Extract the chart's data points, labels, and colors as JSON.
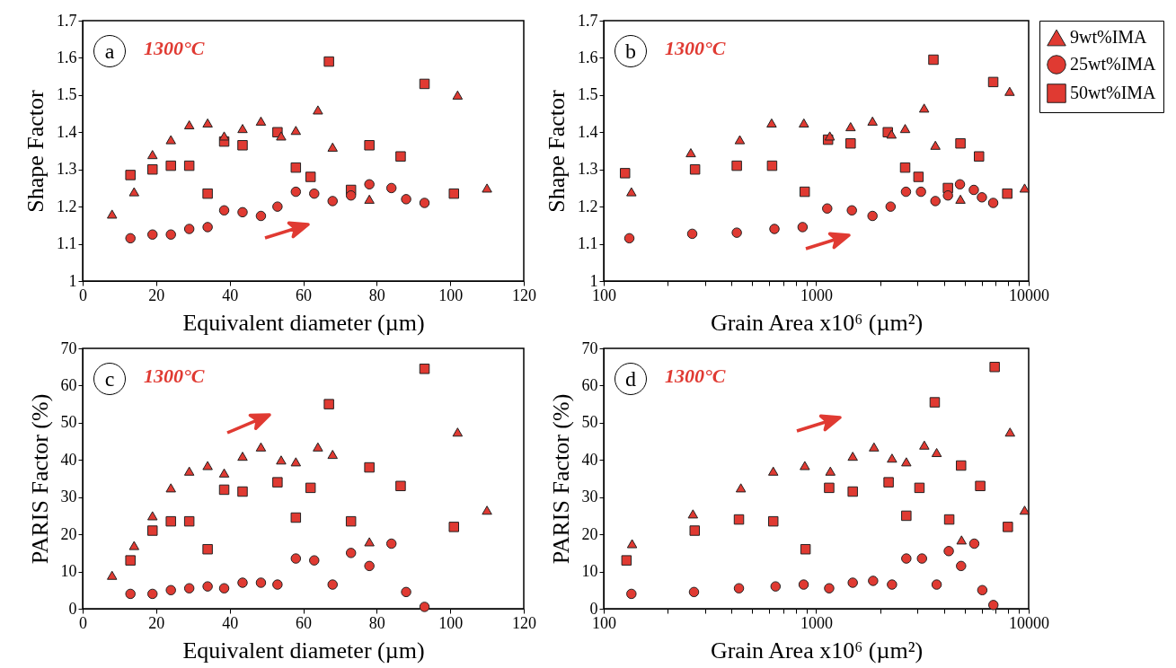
{
  "chart_data": [
    {
      "type": "scatter",
      "xlabel": "Equivalent diameter (µm)",
      "ylabel": "Shape Factor",
      "annotations": [
        "a",
        "1300°C"
      ],
      "xlim": [
        0,
        120
      ],
      "xticks": [
        0,
        20,
        40,
        60,
        80,
        100,
        120
      ],
      "ylim": [
        1,
        1.7
      ],
      "yticks": [
        1,
        1.1,
        1.2,
        1.3,
        1.4,
        1.5,
        1.6,
        1.7
      ],
      "grid": false,
      "legend": false,
      "series": [
        {
          "marker": "triangle",
          "color": "#e03a32",
          "x": [
            8,
            14,
            19,
            24,
            29,
            34,
            38.5,
            43.5,
            48.5,
            54,
            58,
            64,
            68,
            78,
            102,
            110
          ],
          "values": [
            1.18,
            1.24,
            1.34,
            1.38,
            1.42,
            1.425,
            1.39,
            1.41,
            1.43,
            1.39,
            1.405,
            1.46,
            1.36,
            1.22,
            1.5,
            1.25
          ]
        },
        {
          "marker": "circle",
          "color": "#e03a32",
          "x": [
            13,
            19,
            24,
            29,
            34,
            38.5,
            43.5,
            48.5,
            53,
            58,
            63,
            68,
            73,
            78,
            84,
            88,
            93
          ],
          "values": [
            1.115,
            1.125,
            1.125,
            1.14,
            1.145,
            1.19,
            1.185,
            1.175,
            1.2,
            1.24,
            1.235,
            1.215,
            1.23,
            1.26,
            1.25,
            1.22,
            1.21
          ]
        },
        {
          "marker": "square",
          "color": "#e03a32",
          "x": [
            13,
            19,
            24,
            29,
            34,
            38.5,
            43.5,
            53,
            58,
            62,
            67,
            73,
            78,
            86.5,
            93,
            101
          ],
          "values": [
            1.285,
            1.3,
            1.31,
            1.31,
            1.235,
            1.375,
            1.365,
            1.4,
            1.305,
            1.28,
            1.59,
            1.245,
            1.365,
            1.335,
            1.53,
            1.235
          ]
        }
      ]
    },
    {
      "type": "scatter",
      "xlabel": "Grain Area x10⁶ (µm²)",
      "ylabel": "Shape Factor",
      "annotations": [
        "b",
        "1300°C"
      ],
      "log": "x",
      "xlim": [
        100,
        10000
      ],
      "xticks": [
        100,
        {
          "value": 200,
          "label": null
        },
        {
          "value": 300,
          "label": null
        },
        {
          "value": 400,
          "label": null
        },
        {
          "value": 500,
          "label": null
        },
        {
          "value": 600,
          "label": null
        },
        {
          "value": 700,
          "label": null
        },
        {
          "value": 800,
          "label": null
        },
        {
          "value": 900,
          "label": null
        },
        1000,
        {
          "value": 2000,
          "label": null
        },
        {
          "value": 3000,
          "label": null
        },
        {
          "value": 4000,
          "label": null
        },
        {
          "value": 5000,
          "label": null
        },
        {
          "value": 6000,
          "label": null
        },
        {
          "value": 7000,
          "label": null
        },
        {
          "value": 8000,
          "label": null
        },
        {
          "value": 9000,
          "label": null
        },
        10000
      ],
      "ylim": [
        1,
        1.7
      ],
      "yticks": [
        1,
        1.1,
        1.2,
        1.3,
        1.4,
        1.5,
        1.6,
        1.7
      ],
      "grid": false,
      "legend": "top right",
      "series": [
        {
          "name": "9wt%IMA",
          "marker": "triangle",
          "color": "#e03a32",
          "x": [
            135,
            257,
            437,
            617,
            875,
            1159,
            1452,
            1841,
            2262,
            2622,
            3222,
            3639,
            4775,
            8140,
            9570
          ],
          "values": [
            1.24,
            1.345,
            1.38,
            1.425,
            1.425,
            1.39,
            1.415,
            1.43,
            1.395,
            1.41,
            1.465,
            1.365,
            1.22,
            1.51,
            1.25
          ]
        },
        {
          "name": "25wt%IMA",
          "marker": "circle",
          "color": "#e03a32",
          "x": [
            132,
            261,
            423,
            636,
            863,
            1127,
            1472,
            1841,
            2240,
            2646,
            3113,
            3640,
            4170,
            4750,
            5520,
            6025,
            6810
          ],
          "values": [
            1.115,
            1.127,
            1.13,
            1.14,
            1.145,
            1.195,
            1.19,
            1.175,
            1.2,
            1.24,
            1.24,
            1.215,
            1.23,
            1.26,
            1.245,
            1.225,
            1.21
          ]
        },
        {
          "name": "50wt%IMA",
          "marker": "square",
          "color": "#e03a32",
          "x": [
            126,
            269,
            423,
            620,
            883,
            1137,
            1452,
            2173,
            2622,
            3030,
            3563,
            4170,
            4775,
            5840,
            6810,
            7930
          ],
          "values": [
            1.29,
            1.3,
            1.31,
            1.31,
            1.24,
            1.38,
            1.37,
            1.4,
            1.305,
            1.28,
            1.595,
            1.25,
            1.37,
            1.335,
            1.535,
            1.235
          ]
        }
      ]
    },
    {
      "type": "scatter",
      "xlabel": "Equivalent diameter (µm)",
      "ylabel": "PARIS Factor (%)",
      "annotations": [
        "c",
        "1300°C"
      ],
      "xlim": [
        0,
        120
      ],
      "xticks": [
        0,
        20,
        40,
        60,
        80,
        100,
        120
      ],
      "ylim": [
        0,
        70
      ],
      "yticks": [
        0,
        10,
        20,
        30,
        40,
        50,
        60,
        70
      ],
      "grid": false,
      "legend": false,
      "series": [
        {
          "marker": "triangle",
          "color": "#e03a32",
          "x": [
            8,
            14,
            19,
            24,
            29,
            34,
            38.5,
            43.5,
            48.5,
            54,
            58,
            64,
            68,
            78,
            102,
            110
          ],
          "values": [
            9,
            17,
            25,
            32.5,
            37,
            38.5,
            36.5,
            41,
            43.5,
            40,
            39.5,
            43.5,
            41.5,
            18,
            47.5,
            26.5
          ]
        },
        {
          "marker": "circle",
          "color": "#e03a32",
          "x": [
            13,
            19,
            24,
            29,
            34,
            38.5,
            43.5,
            48.5,
            53,
            58,
            63,
            68,
            73,
            78,
            84,
            88,
            93
          ],
          "values": [
            4,
            4,
            5,
            5.5,
            6,
            5.5,
            7,
            7,
            6.5,
            13.5,
            13,
            6.5,
            15,
            11.5,
            17.5,
            4.5,
            0.5
          ]
        },
        {
          "marker": "square",
          "color": "#e03a32",
          "x": [
            13,
            19,
            24,
            29,
            34,
            38.5,
            43.5,
            53,
            58,
            62,
            67,
            73,
            78,
            86.5,
            93,
            101
          ],
          "values": [
            13,
            21,
            23.5,
            23.5,
            16,
            32,
            31.5,
            34,
            24.5,
            32.5,
            55,
            23.5,
            38,
            33,
            64.5,
            22
          ]
        }
      ]
    },
    {
      "type": "scatter",
      "xlabel": "Grain Area x10⁶ (µm²)",
      "ylabel": "PARIS Factor (%)",
      "annotations": [
        "d",
        "1300°C"
      ],
      "log": "x",
      "xlim": [
        100,
        10000
      ],
      "xticks": [
        100,
        {
          "value": 200,
          "label": null
        },
        {
          "value": 300,
          "label": null
        },
        {
          "value": 400,
          "label": null
        },
        {
          "value": 500,
          "label": null
        },
        {
          "value": 600,
          "label": null
        },
        {
          "value": 700,
          "label": null
        },
        {
          "value": 800,
          "label": null
        },
        {
          "value": 900,
          "label": null
        },
        1000,
        {
          "value": 2000,
          "label": null
        },
        {
          "value": 3000,
          "label": null
        },
        {
          "value": 4000,
          "label": null
        },
        {
          "value": 5000,
          "label": null
        },
        {
          "value": 6000,
          "label": null
        },
        {
          "value": 7000,
          "label": null
        },
        {
          "value": 8000,
          "label": null
        },
        {
          "value": 9000,
          "label": null
        },
        10000
      ],
      "ylim": [
        0,
        70
      ],
      "yticks": [
        0,
        10,
        20,
        30,
        40,
        50,
        60,
        70
      ],
      "grid": false,
      "legend": false,
      "series": [
        {
          "marker": "triangle",
          "color": "#e03a32",
          "x": [
            136,
            263,
            442,
            628,
            884,
            1166,
            1486,
            1871,
            2274,
            2656,
            3228,
            3690,
            4831,
            8170,
            9570
          ],
          "values": [
            17.5,
            25.5,
            32.5,
            37,
            38.5,
            37,
            41,
            43.5,
            40.5,
            39.5,
            44,
            42,
            18.5,
            47.5,
            26.5
          ]
        },
        {
          "marker": "circle",
          "color": "#e03a32",
          "x": [
            135,
            266,
            433,
            644,
            873,
            1151,
            1486,
            1853,
            2274,
            2656,
            3147,
            3690,
            4207,
            4808,
            5546,
            6051,
            6823
          ],
          "values": [
            4,
            4.5,
            5.5,
            6,
            6.5,
            5.5,
            7,
            7.5,
            6.5,
            13.5,
            13.5,
            6.5,
            15.5,
            11.5,
            17.5,
            5,
            1
          ]
        },
        {
          "marker": "square",
          "color": "#e03a32",
          "x": [
            128,
            268,
            433,
            628,
            891,
            1151,
            1486,
            2192,
            2656,
            3062,
            3614,
            4228,
            4808,
            5916,
            6918,
            7980
          ],
          "values": [
            13,
            21,
            24,
            23.5,
            16,
            32.5,
            31.5,
            34,
            25,
            32.5,
            55.5,
            24,
            38.5,
            33,
            65,
            22
          ]
        }
      ]
    }
  ]
}
